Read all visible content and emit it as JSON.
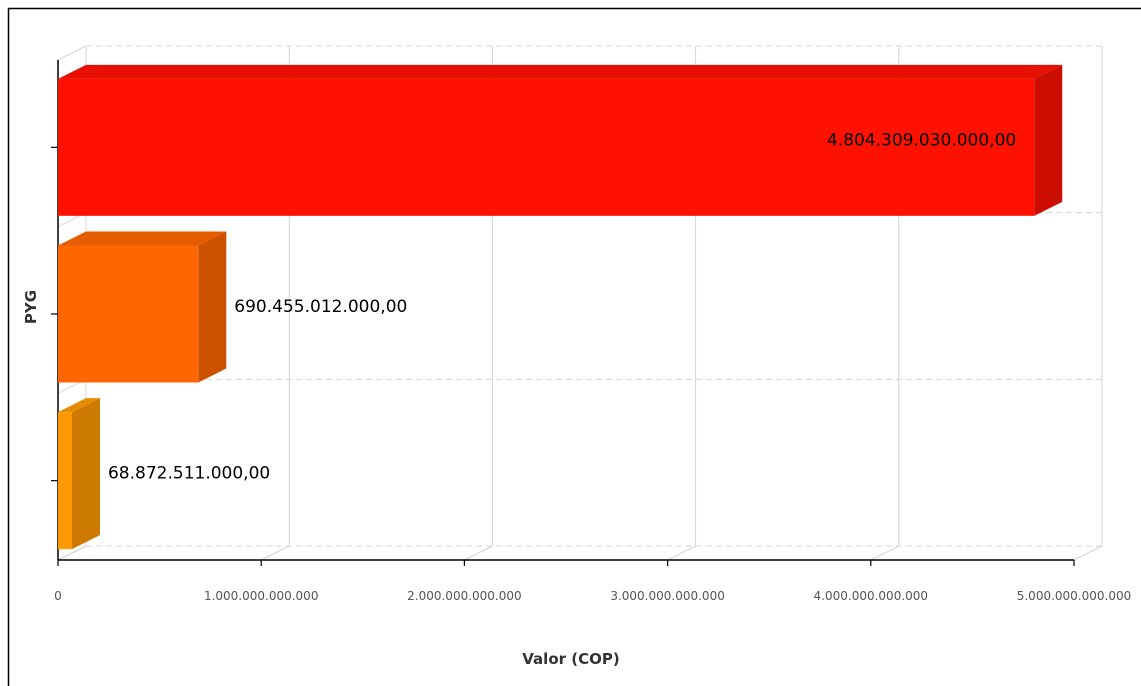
{
  "chart_data": {
    "type": "bar",
    "orientation": "horizontal",
    "three_d": true,
    "category_axis_label": "PYG",
    "value_axis_label": "Valor (COP)",
    "categories": [
      "",
      "",
      ""
    ],
    "values": [
      4804309030000,
      690455012000,
      68872511000
    ],
    "data_labels": [
      "4.804.309.030.000,00",
      "690.455.012.000,00",
      "68.872.511.000,00"
    ],
    "bar_colors": [
      "#ff1100",
      "#ff6600",
      "#ff9900"
    ],
    "xlim": [
      0,
      5000000000000
    ],
    "x_ticks": [
      0,
      1000000000000,
      2000000000000,
      3000000000000,
      4000000000000,
      5000000000000
    ],
    "x_tick_labels": [
      "0",
      "1.000.000.000.000",
      "2.000.000.000.000",
      "3.000.000.000.000",
      "4.000.000.000.000",
      "5.000.000.000.000"
    ],
    "grid": true,
    "legend": "none"
  },
  "colors": {
    "grid": "#d4d4d4",
    "axis": "#000000",
    "frame": "#000000"
  }
}
